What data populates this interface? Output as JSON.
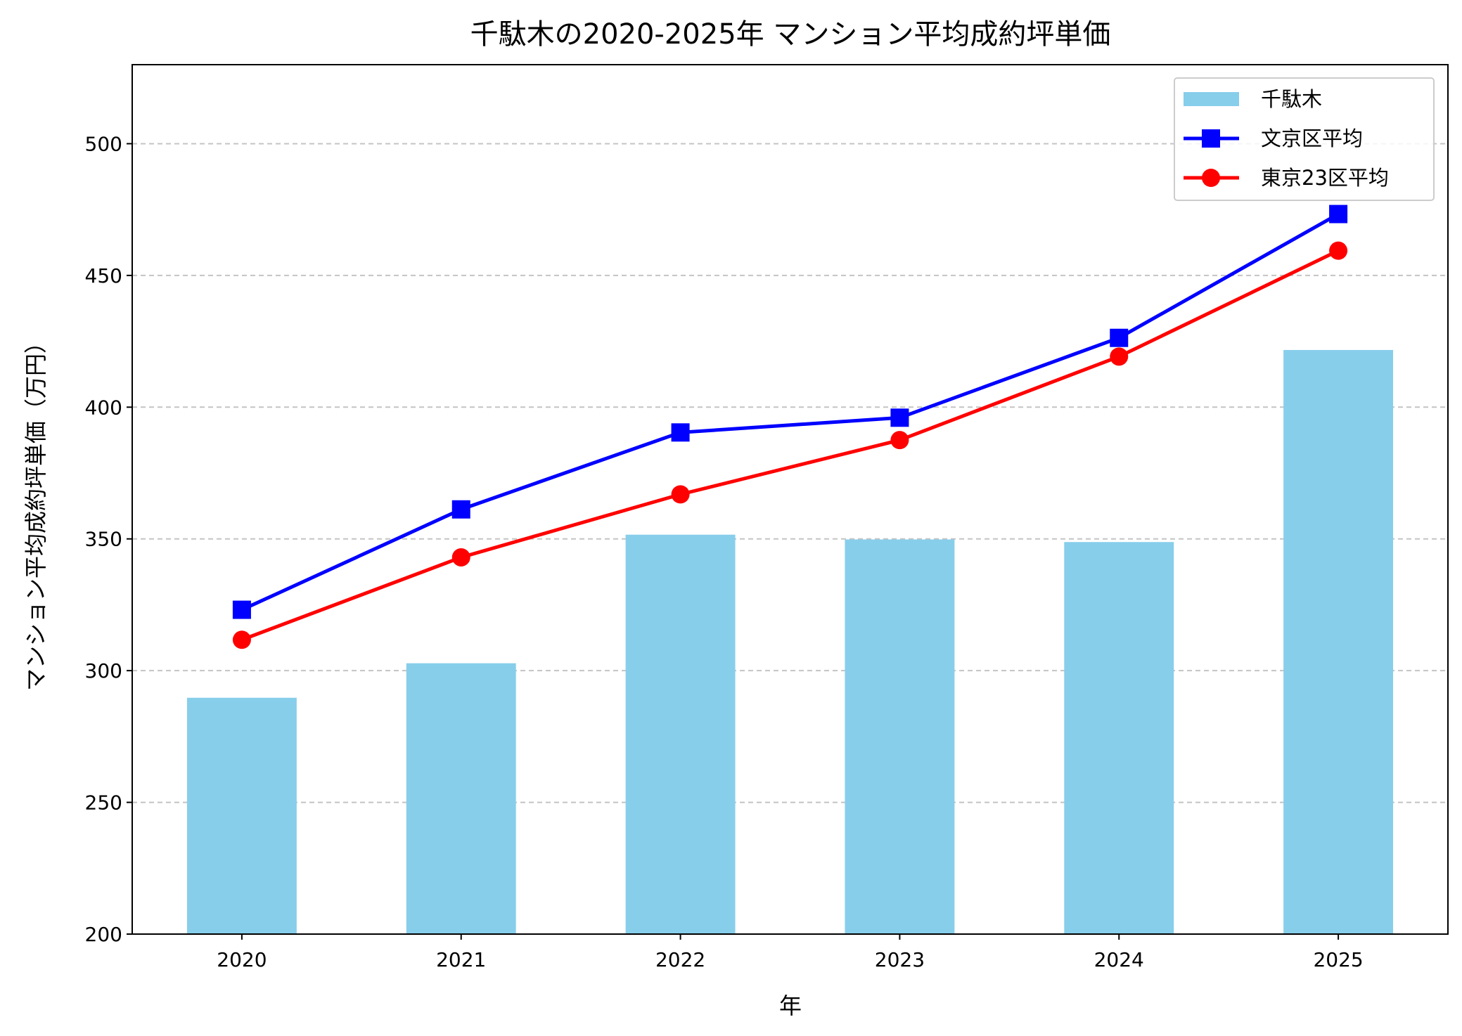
{
  "chart_data": {
    "type": "bar+line",
    "title": "千駄木の2020-2025年 マンション平均成約坪単価",
    "xlabel": "年",
    "ylabel": "マンション平均成約坪単価（万円）",
    "categories": [
      "2020",
      "2021",
      "2022",
      "2023",
      "2024",
      "2025"
    ],
    "ylim": [
      200,
      530
    ],
    "yticks": [
      200,
      250,
      300,
      350,
      400,
      450,
      500
    ],
    "grid": "y-dashed",
    "legend_position": "top-right",
    "series": [
      {
        "name": "千駄木",
        "kind": "bar",
        "color": "#87CEEB",
        "values": [
          289.7,
          302.8,
          351.6,
          349.8,
          348.8,
          421.7
        ]
      },
      {
        "name": "文京区平均",
        "kind": "line",
        "marker": "square",
        "color": "#0000FF",
        "values": [
          323.1,
          361.2,
          390.4,
          396.0,
          426.3,
          473.3
        ]
      },
      {
        "name": "東京23区平均",
        "kind": "line",
        "marker": "circle",
        "color": "#FF0000",
        "values": [
          311.7,
          343.0,
          366.9,
          387.5,
          419.2,
          459.4
        ]
      }
    ]
  }
}
